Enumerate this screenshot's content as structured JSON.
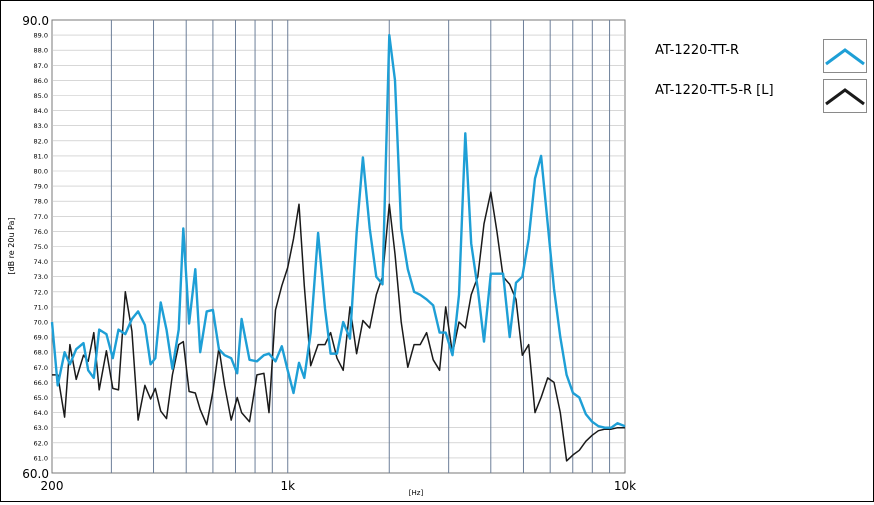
{
  "chart_data": {
    "type": "line",
    "title": "",
    "xlabel": "[Hz]",
    "ylabel": "[dB re 20u Pa]",
    "x_scale": "log",
    "xlim": [
      200,
      10000
    ],
    "ylim": [
      60,
      90
    ],
    "grid": true,
    "legend_position": "top-right",
    "x_tick_labels": [
      {
        "value": 200,
        "label": "200"
      },
      {
        "value": 1000,
        "label": "1k"
      },
      {
        "value": 10000,
        "label": "10k"
      }
    ],
    "y_major_labels": [
      {
        "value": 90,
        "label": "90.0"
      },
      {
        "value": 60,
        "label": "60.0"
      }
    ],
    "y_minor_labels": [
      "89.0",
      "88.0",
      "87.0",
      "86.0",
      "85.0",
      "84.0",
      "83.0",
      "82.0",
      "81.0",
      "80.0",
      "79.0",
      "78.0",
      "77.0",
      "76.0",
      "75.0",
      "74.0",
      "73.0",
      "72.0",
      "71.0",
      "70.0",
      "69.0",
      "68.0",
      "67.0",
      "66.0",
      "65.0",
      "64.0",
      "63.0",
      "62.0",
      "61.0"
    ],
    "series": [
      {
        "name": "AT-1220-TT-R",
        "color": "#1e9fd6",
        "points": [
          [
            200,
            70.0
          ],
          [
            208,
            65.8
          ],
          [
            218,
            68.0
          ],
          [
            226,
            67.2
          ],
          [
            236,
            68.2
          ],
          [
            248,
            68.6
          ],
          [
            256,
            66.8
          ],
          [
            266,
            66.3
          ],
          [
            276,
            69.5
          ],
          [
            290,
            69.2
          ],
          [
            303,
            67.6
          ],
          [
            315,
            69.5
          ],
          [
            330,
            69.2
          ],
          [
            345,
            70.2
          ],
          [
            360,
            70.7
          ],
          [
            377,
            69.8
          ],
          [
            392,
            67.2
          ],
          [
            405,
            67.6
          ],
          [
            420,
            71.3
          ],
          [
            437,
            69.5
          ],
          [
            455,
            66.9
          ],
          [
            475,
            69.5
          ],
          [
            490,
            76.2
          ],
          [
            510,
            69.9
          ],
          [
            532,
            73.5
          ],
          [
            550,
            68.0
          ],
          [
            575,
            70.7
          ],
          [
            600,
            70.8
          ],
          [
            625,
            68.2
          ],
          [
            650,
            67.8
          ],
          [
            680,
            67.6
          ],
          [
            708,
            66.6
          ],
          [
            730,
            70.2
          ],
          [
            770,
            67.5
          ],
          [
            810,
            67.4
          ],
          [
            850,
            67.8
          ],
          [
            880,
            67.9
          ],
          [
            920,
            67.4
          ],
          [
            960,
            68.4
          ],
          [
            1000,
            66.8
          ],
          [
            1040,
            65.3
          ],
          [
            1080,
            67.3
          ],
          [
            1120,
            66.3
          ],
          [
            1170,
            69.3
          ],
          [
            1230,
            75.9
          ],
          [
            1290,
            70.9
          ],
          [
            1340,
            67.9
          ],
          [
            1400,
            67.9
          ],
          [
            1460,
            70.0
          ],
          [
            1530,
            68.9
          ],
          [
            1600,
            75.9
          ],
          [
            1670,
            80.9
          ],
          [
            1750,
            76.2
          ],
          [
            1830,
            73.0
          ],
          [
            1910,
            72.5
          ],
          [
            2000,
            89.0
          ],
          [
            2080,
            86.0
          ],
          [
            2170,
            76.2
          ],
          [
            2270,
            73.5
          ],
          [
            2370,
            72.0
          ],
          [
            2470,
            71.8
          ],
          [
            2580,
            71.5
          ],
          [
            2700,
            71.1
          ],
          [
            2820,
            69.3
          ],
          [
            2940,
            69.3
          ],
          [
            3080,
            67.8
          ],
          [
            3220,
            71.8
          ],
          [
            3360,
            82.5
          ],
          [
            3500,
            75.2
          ],
          [
            3660,
            72.2
          ],
          [
            3820,
            68.7
          ],
          [
            4000,
            73.2
          ],
          [
            4170,
            73.2
          ],
          [
            4350,
            73.2
          ],
          [
            4550,
            69.0
          ],
          [
            4750,
            72.6
          ],
          [
            4960,
            73.0
          ],
          [
            5180,
            75.5
          ],
          [
            5410,
            79.5
          ],
          [
            5640,
            81.0
          ],
          [
            5900,
            76.5
          ],
          [
            6160,
            72.2
          ],
          [
            6430,
            69.0
          ],
          [
            6710,
            66.5
          ],
          [
            7010,
            65.3
          ],
          [
            7320,
            65.0
          ],
          [
            7650,
            63.9
          ],
          [
            7990,
            63.4
          ],
          [
            8340,
            63.1
          ],
          [
            8710,
            63.0
          ],
          [
            9100,
            63.0
          ],
          [
            9500,
            63.3
          ],
          [
            10000,
            63.1
          ]
        ]
      },
      {
        "name": "AT-1220-TT-5-R [L]",
        "color": "#1a1a1a",
        "points": [
          [
            200,
            66.5
          ],
          [
            208,
            66.5
          ],
          [
            218,
            63.7
          ],
          [
            226,
            68.5
          ],
          [
            236,
            66.2
          ],
          [
            248,
            67.8
          ],
          [
            256,
            67.4
          ],
          [
            266,
            69.3
          ],
          [
            276,
            65.5
          ],
          [
            290,
            68.1
          ],
          [
            303,
            65.6
          ],
          [
            315,
            65.5
          ],
          [
            330,
            72.0
          ],
          [
            345,
            69.4
          ],
          [
            360,
            63.5
          ],
          [
            377,
            65.8
          ],
          [
            392,
            64.9
          ],
          [
            405,
            65.6
          ],
          [
            420,
            64.1
          ],
          [
            437,
            63.6
          ],
          [
            455,
            66.5
          ],
          [
            475,
            68.5
          ],
          [
            490,
            68.7
          ],
          [
            510,
            65.4
          ],
          [
            532,
            65.3
          ],
          [
            550,
            64.2
          ],
          [
            575,
            63.2
          ],
          [
            600,
            65.4
          ],
          [
            625,
            68.3
          ],
          [
            650,
            65.8
          ],
          [
            680,
            63.5
          ],
          [
            708,
            65.0
          ],
          [
            730,
            64.0
          ],
          [
            770,
            63.4
          ],
          [
            810,
            66.5
          ],
          [
            850,
            66.6
          ],
          [
            880,
            64.0
          ],
          [
            920,
            70.8
          ],
          [
            960,
            72.4
          ],
          [
            1000,
            73.6
          ],
          [
            1040,
            75.5
          ],
          [
            1080,
            77.8
          ],
          [
            1120,
            72.4
          ],
          [
            1170,
            67.1
          ],
          [
            1230,
            68.5
          ],
          [
            1290,
            68.5
          ],
          [
            1340,
            69.3
          ],
          [
            1400,
            67.6
          ],
          [
            1460,
            66.8
          ],
          [
            1530,
            71.0
          ],
          [
            1600,
            67.9
          ],
          [
            1670,
            70.1
          ],
          [
            1750,
            69.6
          ],
          [
            1830,
            71.8
          ],
          [
            1910,
            73.0
          ],
          [
            2000,
            77.8
          ],
          [
            2080,
            74.5
          ],
          [
            2170,
            70.0
          ],
          [
            2270,
            67.0
          ],
          [
            2370,
            68.5
          ],
          [
            2470,
            68.5
          ],
          [
            2580,
            69.3
          ],
          [
            2700,
            67.5
          ],
          [
            2820,
            66.8
          ],
          [
            2940,
            71.0
          ],
          [
            3080,
            67.9
          ],
          [
            3220,
            70.0
          ],
          [
            3360,
            69.6
          ],
          [
            3500,
            71.8
          ],
          [
            3660,
            73.0
          ],
          [
            3820,
            76.5
          ],
          [
            4000,
            78.6
          ],
          [
            4170,
            76.0
          ],
          [
            4350,
            73.0
          ],
          [
            4550,
            72.5
          ],
          [
            4750,
            71.5
          ],
          [
            4960,
            67.8
          ],
          [
            5180,
            68.5
          ],
          [
            5410,
            64.0
          ],
          [
            5640,
            65.0
          ],
          [
            5900,
            66.3
          ],
          [
            6160,
            66.0
          ],
          [
            6430,
            64.0
          ],
          [
            6710,
            60.8
          ],
          [
            7010,
            61.2
          ],
          [
            7320,
            61.5
          ],
          [
            7650,
            62.1
          ],
          [
            7990,
            62.5
          ],
          [
            8340,
            62.8
          ],
          [
            8710,
            62.9
          ],
          [
            9100,
            62.9
          ],
          [
            9500,
            63.0
          ],
          [
            10000,
            63.0
          ]
        ]
      }
    ]
  }
}
